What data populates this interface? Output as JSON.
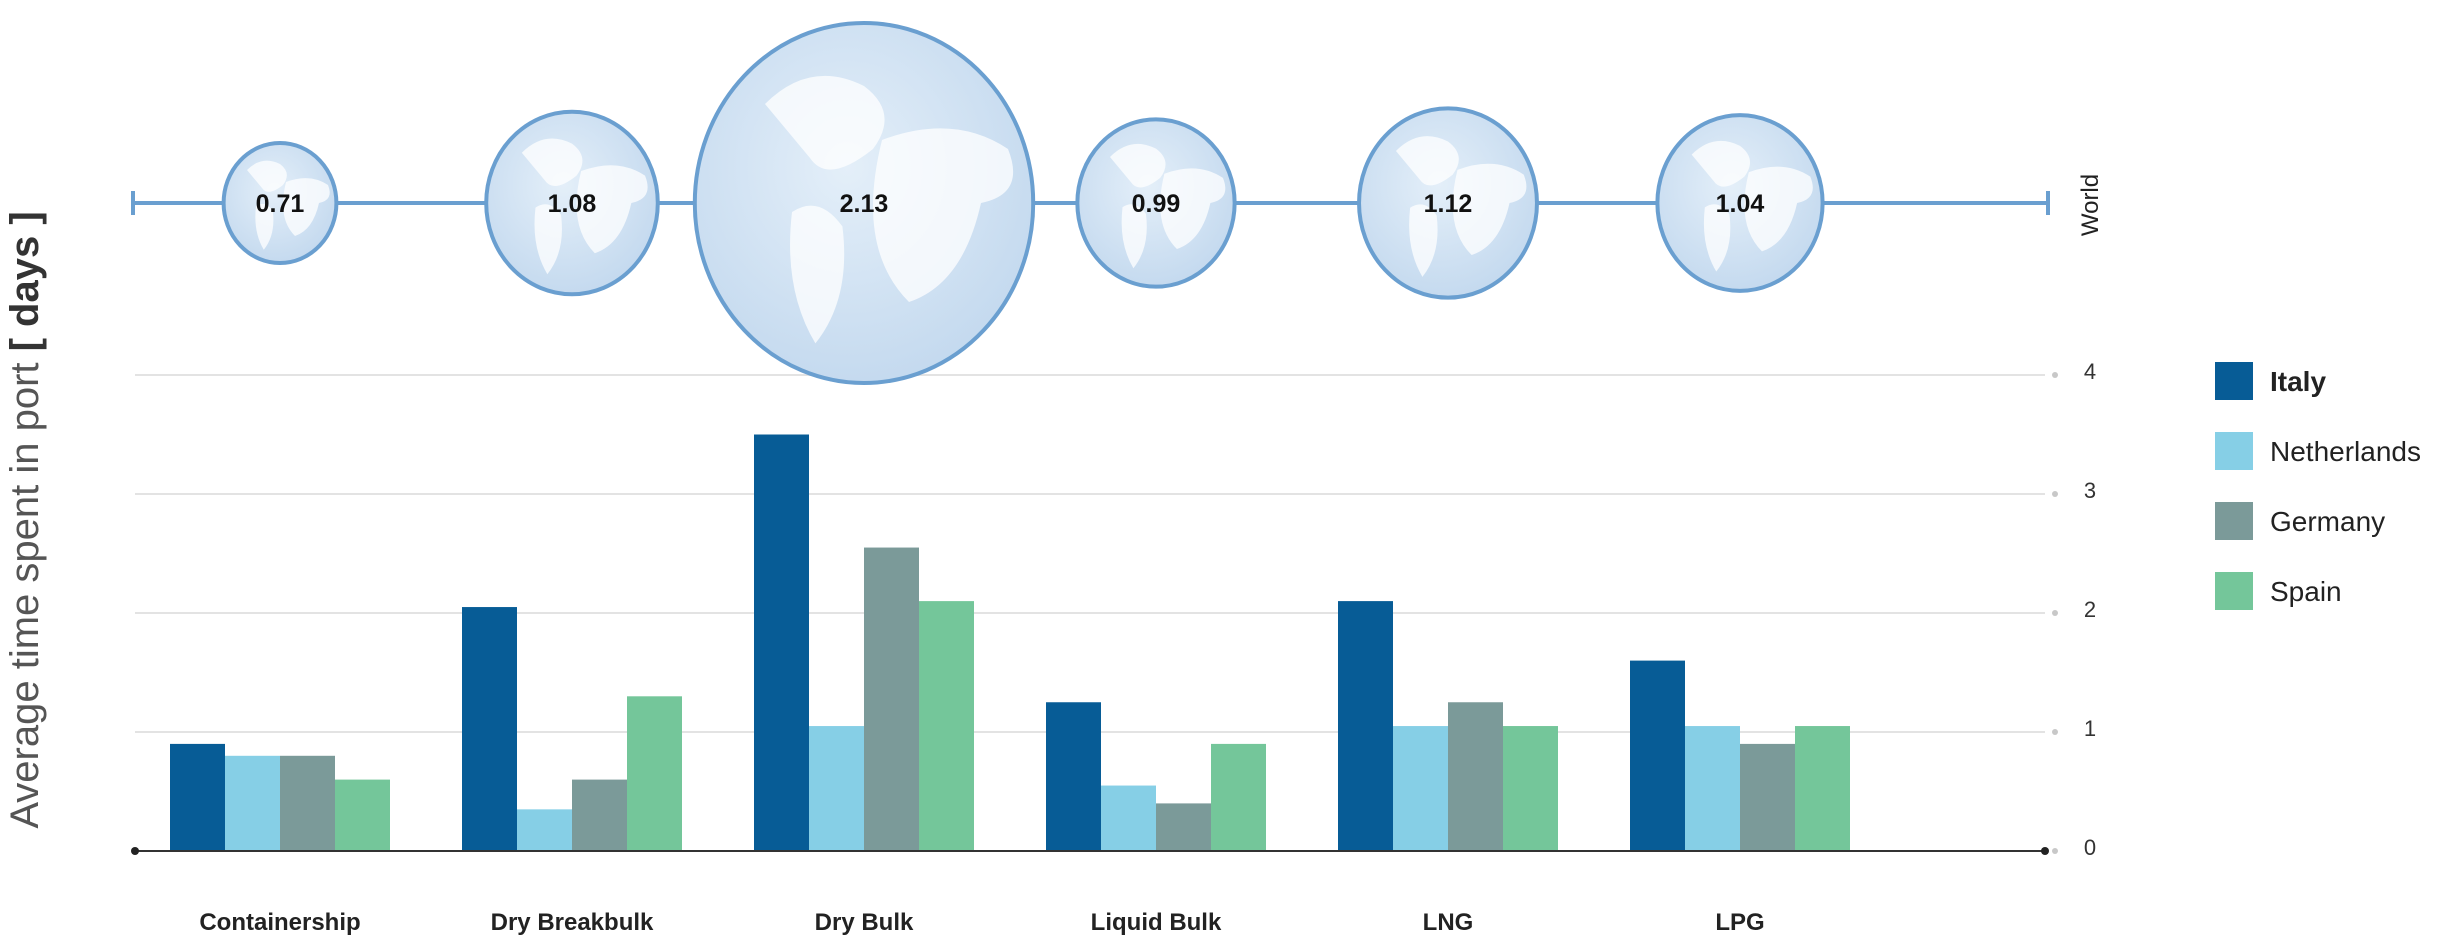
{
  "chart_data": {
    "type": "bar",
    "ylabel_prefix": "Average time spent in port ",
    "ylabel_unit": "[ days ]",
    "world_label": "World",
    "categories": [
      "Containership",
      "Dry Breakbulk",
      "Dry Bulk",
      "Liquid Bulk",
      "LNG",
      "LPG"
    ],
    "world_values": [
      0.71,
      1.08,
      2.13,
      0.99,
      1.12,
      1.04
    ],
    "world_labels": [
      "0.71",
      "1.08",
      "2.13",
      "0.99",
      "1.12",
      "1.04"
    ],
    "ylim": [
      0,
      4
    ],
    "yticks": [
      0,
      1,
      2,
      3,
      4
    ],
    "ytick_labels": [
      "0",
      "1",
      "2",
      "3",
      "4"
    ],
    "grid": true,
    "legend_position": "right",
    "series": [
      {
        "name": "Italy",
        "color": "#075C96",
        "values": [
          0.9,
          2.05,
          3.5,
          1.25,
          2.1,
          1.6
        ]
      },
      {
        "name": "Netherlands",
        "color": "#86CFE6",
        "values": [
          0.8,
          0.35,
          1.05,
          0.55,
          1.05,
          1.05
        ]
      },
      {
        "name": "Germany",
        "color": "#7B9A99",
        "values": [
          0.8,
          0.6,
          2.55,
          0.4,
          1.25,
          0.9
        ]
      },
      {
        "name": "Spain",
        "color": "#74C69A",
        "values": [
          0.6,
          1.3,
          2.1,
          0.9,
          1.05,
          1.05
        ]
      }
    ]
  }
}
